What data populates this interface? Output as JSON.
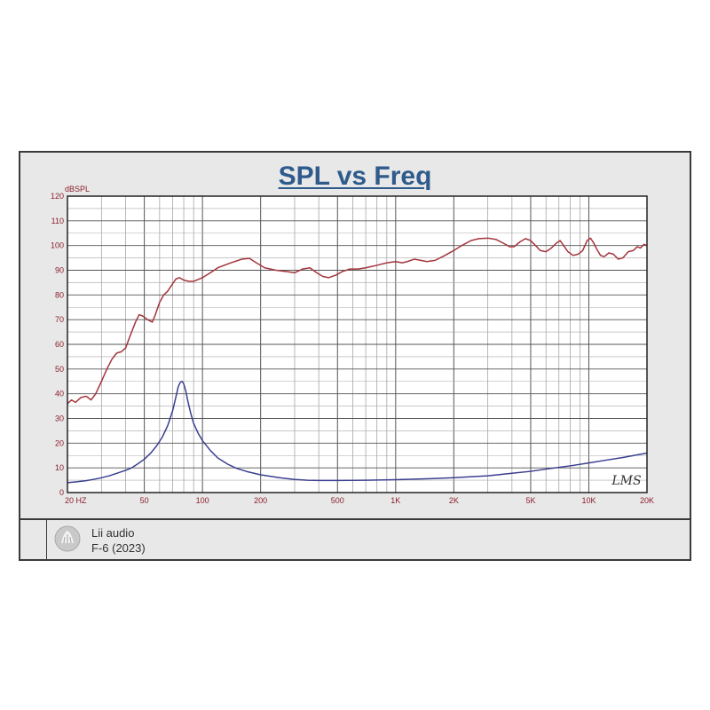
{
  "title": "SPL vs Freq",
  "footer": {
    "brand": "Lii audio",
    "model": "F-6 (2023)"
  },
  "colors": {
    "spl": "#a3353c",
    "impedance": "#3a3f8f",
    "title": "#2e5a8c",
    "axis_text": "#8b1e2a"
  },
  "chart_data": {
    "type": "line",
    "title": "SPL vs Freq",
    "ylabel": "dBSPL",
    "xlabel": "",
    "xscale": "log",
    "xlim": [
      20,
      20000
    ],
    "ylim": [
      0,
      120
    ],
    "grid": true,
    "watermark": "LMS",
    "x_tick_labels": [
      {
        "value": 20,
        "label": "20  HZ"
      },
      {
        "value": 50,
        "label": "50"
      },
      {
        "value": 100,
        "label": "100"
      },
      {
        "value": 200,
        "label": "200"
      },
      {
        "value": 500,
        "label": "500"
      },
      {
        "value": 1000,
        "label": "1K"
      },
      {
        "value": 2000,
        "label": "2K"
      },
      {
        "value": 5000,
        "label": "5K"
      },
      {
        "value": 10000,
        "label": "10K"
      },
      {
        "value": 20000,
        "label": "20K"
      }
    ],
    "y_ticks": [
      0,
      10,
      20,
      30,
      40,
      50,
      60,
      70,
      80,
      90,
      100,
      110,
      120
    ],
    "series": [
      {
        "color": "#a3353c",
        "points": [
          [
            20,
            36
          ],
          [
            21,
            37.5
          ],
          [
            22,
            36.5
          ],
          [
            23.5,
            38.5
          ],
          [
            25,
            39
          ],
          [
            26.5,
            37.5
          ],
          [
            28,
            40
          ],
          [
            30,
            45
          ],
          [
            32,
            50
          ],
          [
            34,
            54
          ],
          [
            36,
            56.5
          ],
          [
            38,
            57
          ],
          [
            40,
            58.5
          ],
          [
            42,
            63
          ],
          [
            45,
            69
          ],
          [
            47,
            72
          ],
          [
            49,
            71.5
          ],
          [
            52,
            70
          ],
          [
            55,
            69
          ],
          [
            57,
            72
          ],
          [
            60,
            77
          ],
          [
            63,
            80
          ],
          [
            66,
            81.5
          ],
          [
            70,
            84.5
          ],
          [
            73,
            86.5
          ],
          [
            76,
            87
          ],
          [
            80,
            86
          ],
          [
            85,
            85.5
          ],
          [
            90,
            85.5
          ],
          [
            100,
            87
          ],
          [
            110,
            89
          ],
          [
            120,
            91
          ],
          [
            140,
            93
          ],
          [
            160,
            94.5
          ],
          [
            175,
            94.8
          ],
          [
            190,
            93
          ],
          [
            210,
            91
          ],
          [
            240,
            90
          ],
          [
            270,
            89.5
          ],
          [
            300,
            89
          ],
          [
            330,
            90.5
          ],
          [
            360,
            91
          ],
          [
            390,
            89
          ],
          [
            420,
            87.5
          ],
          [
            450,
            87
          ],
          [
            490,
            88
          ],
          [
            530,
            89.5
          ],
          [
            580,
            90.5
          ],
          [
            640,
            90.5
          ],
          [
            700,
            91
          ],
          [
            800,
            92
          ],
          [
            900,
            93
          ],
          [
            1000,
            93.5
          ],
          [
            1080,
            93
          ],
          [
            1150,
            93.5
          ],
          [
            1250,
            94.5
          ],
          [
            1350,
            94
          ],
          [
            1450,
            93.5
          ],
          [
            1600,
            94
          ],
          [
            1800,
            96
          ],
          [
            2000,
            98
          ],
          [
            2200,
            100
          ],
          [
            2450,
            102
          ],
          [
            2700,
            102.8
          ],
          [
            3000,
            103
          ],
          [
            3300,
            102.5
          ],
          [
            3600,
            101
          ],
          [
            3900,
            99.5
          ],
          [
            4100,
            99.5
          ],
          [
            4400,
            101.5
          ],
          [
            4700,
            102.8
          ],
          [
            5000,
            102
          ],
          [
            5300,
            100
          ],
          [
            5600,
            98
          ],
          [
            6000,
            97.5
          ],
          [
            6400,
            99
          ],
          [
            6800,
            101
          ],
          [
            7100,
            102
          ],
          [
            7400,
            100
          ],
          [
            7800,
            97.5
          ],
          [
            8300,
            96
          ],
          [
            8800,
            96.5
          ],
          [
            9300,
            98
          ],
          [
            9800,
            102
          ],
          [
            10200,
            103
          ],
          [
            10600,
            101
          ],
          [
            11000,
            98.5
          ],
          [
            11500,
            96
          ],
          [
            12000,
            95.5
          ],
          [
            12700,
            97
          ],
          [
            13400,
            96.5
          ],
          [
            14200,
            94.5
          ],
          [
            15000,
            95
          ],
          [
            16000,
            97.5
          ],
          [
            17000,
            98
          ],
          [
            17800,
            99.5
          ],
          [
            18500,
            99
          ],
          [
            19300,
            100.5
          ],
          [
            20000,
            100
          ]
        ]
      },
      {
        "color": "#3a3f8f",
        "points": [
          [
            20,
            4
          ],
          [
            22,
            4.3
          ],
          [
            25,
            4.8
          ],
          [
            28,
            5.5
          ],
          [
            30,
            6
          ],
          [
            33,
            6.8
          ],
          [
            36,
            7.8
          ],
          [
            40,
            9
          ],
          [
            43,
            10
          ],
          [
            46,
            11.5
          ],
          [
            50,
            13.5
          ],
          [
            54,
            16
          ],
          [
            58,
            19
          ],
          [
            62,
            22.5
          ],
          [
            66,
            27
          ],
          [
            70,
            33
          ],
          [
            73,
            39
          ],
          [
            75,
            43
          ],
          [
            77,
            44.8
          ],
          [
            78.5,
            45
          ],
          [
            80,
            44
          ],
          [
            82,
            41
          ],
          [
            84,
            37
          ],
          [
            87,
            32
          ],
          [
            90,
            28
          ],
          [
            95,
            24
          ],
          [
            100,
            21
          ],
          [
            110,
            17
          ],
          [
            120,
            14
          ],
          [
            135,
            11.5
          ],
          [
            150,
            9.8
          ],
          [
            170,
            8.5
          ],
          [
            200,
            7.2
          ],
          [
            250,
            6
          ],
          [
            300,
            5.3
          ],
          [
            350,
            5
          ],
          [
            400,
            4.9
          ],
          [
            500,
            4.9
          ],
          [
            700,
            5
          ],
          [
            1000,
            5.2
          ],
          [
            1500,
            5.6
          ],
          [
            2000,
            6
          ],
          [
            3000,
            6.8
          ],
          [
            4000,
            7.8
          ],
          [
            5000,
            8.6
          ],
          [
            6000,
            9.5
          ],
          [
            8000,
            10.8
          ],
          [
            10000,
            12
          ],
          [
            12000,
            13
          ],
          [
            15000,
            14.2
          ],
          [
            20000,
            16
          ]
        ]
      }
    ]
  }
}
